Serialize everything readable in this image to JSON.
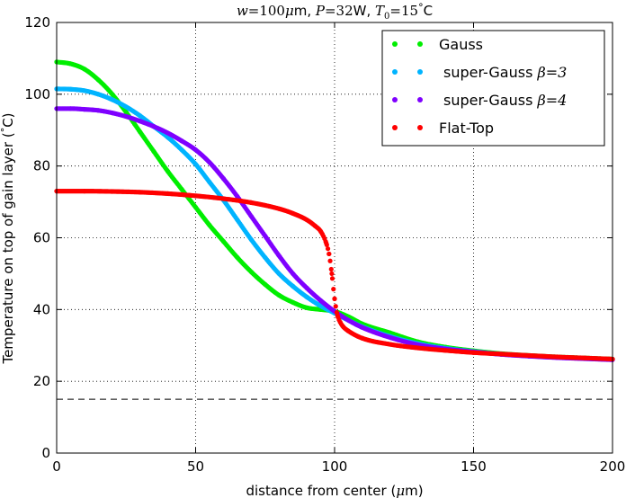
{
  "chart_data": {
    "type": "scatter",
    "title": "w=100μm, P=32W, T₀=15° C",
    "xlabel": "distance from center (μm)",
    "ylabel": "Temperature on top of gain layer (° C)",
    "xlim": [
      0,
      200
    ],
    "ylim": [
      0,
      120
    ],
    "xticks": [
      0,
      50,
      100,
      150,
      200
    ],
    "yticks": [
      0,
      20,
      40,
      60,
      80,
      100,
      120
    ],
    "xtick_labels": [
      "0",
      "50",
      "100",
      "150",
      "200"
    ],
    "ytick_labels": [
      "0",
      "20",
      "40",
      "60",
      "80",
      "100",
      "120"
    ],
    "grid": true,
    "legend_position": "top-right",
    "reference_line": {
      "y": 15,
      "style": "dashed",
      "color": "#000000"
    },
    "series": [
      {
        "name": "Gauss",
        "color": "#00ee00",
        "x": [
          0,
          5,
          10,
          15,
          20,
          25,
          30,
          35,
          40,
          45,
          50,
          55,
          60,
          65,
          70,
          75,
          80,
          85,
          90,
          95,
          100,
          105,
          110,
          120,
          130,
          140,
          150,
          160,
          170,
          180,
          190,
          200
        ],
        "y": [
          109,
          108.5,
          107,
          104,
          100,
          95,
          89.5,
          84,
          78.5,
          73.5,
          68.5,
          63.5,
          59,
          54.5,
          50.5,
          47,
          44,
          42,
          40.5,
          40,
          39.5,
          38,
          36,
          33.5,
          31,
          29.5,
          28.5,
          27.7,
          27.2,
          26.8,
          26.5,
          26.2
        ]
      },
      {
        "name": "super-Gauss β=3",
        "color": "#00b4ff",
        "x": [
          0,
          5,
          10,
          15,
          20,
          25,
          30,
          35,
          40,
          45,
          50,
          55,
          60,
          65,
          70,
          75,
          80,
          85,
          90,
          95,
          100,
          105,
          110,
          120,
          130,
          140,
          150,
          160,
          170,
          180,
          190,
          200
        ],
        "y": [
          101.5,
          101.4,
          101,
          100,
          98.5,
          96.5,
          94,
          91,
          88,
          84.5,
          80.5,
          75.5,
          70.5,
          65,
          59.5,
          54.5,
          50,
          46.5,
          43.5,
          41,
          39,
          37,
          35.2,
          32.5,
          30.5,
          29.2,
          28.3,
          27.6,
          27.1,
          26.7,
          26.4,
          26.1
        ]
      },
      {
        "name": "super-Gauss β=4",
        "color": "#7f00ff",
        "x": [
          0,
          5,
          10,
          15,
          20,
          25,
          30,
          35,
          40,
          45,
          50,
          55,
          60,
          65,
          70,
          75,
          80,
          85,
          90,
          95,
          100,
          105,
          110,
          120,
          130,
          140,
          150,
          160,
          170,
          180,
          190,
          200
        ],
        "y": [
          96,
          96,
          95.8,
          95.5,
          94.8,
          93.8,
          92.5,
          91,
          89.2,
          87,
          84.5,
          81,
          76.5,
          71.5,
          66,
          60.5,
          55,
          50,
          46,
          42.5,
          39.5,
          37,
          35,
          32.2,
          30.2,
          29,
          28.2,
          27.5,
          27,
          26.6,
          26.3,
          26
        ]
      },
      {
        "name": "Flat-Top",
        "color": "#ff0000",
        "x": [
          0,
          10,
          20,
          30,
          40,
          50,
          60,
          70,
          80,
          85,
          90,
          93,
          95,
          97,
          98,
          99,
          100,
          101,
          102,
          103,
          105,
          110,
          120,
          130,
          140,
          150,
          160,
          170,
          180,
          190,
          200
        ],
        "y": [
          73,
          73,
          72.9,
          72.7,
          72.3,
          71.7,
          70.9,
          69.8,
          68.1,
          66.8,
          65,
          63.3,
          61.8,
          58.5,
          55.5,
          50,
          43,
          38.5,
          36.5,
          35.3,
          34,
          32,
          30.3,
          29.3,
          28.6,
          28,
          27.6,
          27.2,
          26.8,
          26.5,
          26.2
        ]
      }
    ]
  },
  "legend": {
    "items": [
      {
        "label": "Gauss",
        "color": "#00ee00"
      },
      {
        "label": "super-Gauss ",
        "math": "β=3",
        "color": "#00b4ff"
      },
      {
        "label": "super-Gauss ",
        "math": "β=4",
        "color": "#7f00ff"
      },
      {
        "label": "Flat-Top",
        "color": "#ff0000"
      }
    ]
  },
  "title_parts": {
    "w": "w",
    "eq1": "=100",
    "mu": "μ",
    "m": "m, ",
    "P": "P",
    "eq2": "=32",
    "W": "W, ",
    "T": "T",
    "sub0": "0",
    "eq3": "=15",
    "deg": "°",
    "C": "C"
  },
  "xlabel_parts": {
    "pre": "distance from center (",
    "mu": "μ",
    "post": "m)"
  },
  "ylabel_parts": {
    "pre": "Temperature on top of gain layer (",
    "deg": "°",
    "post": "C)"
  }
}
